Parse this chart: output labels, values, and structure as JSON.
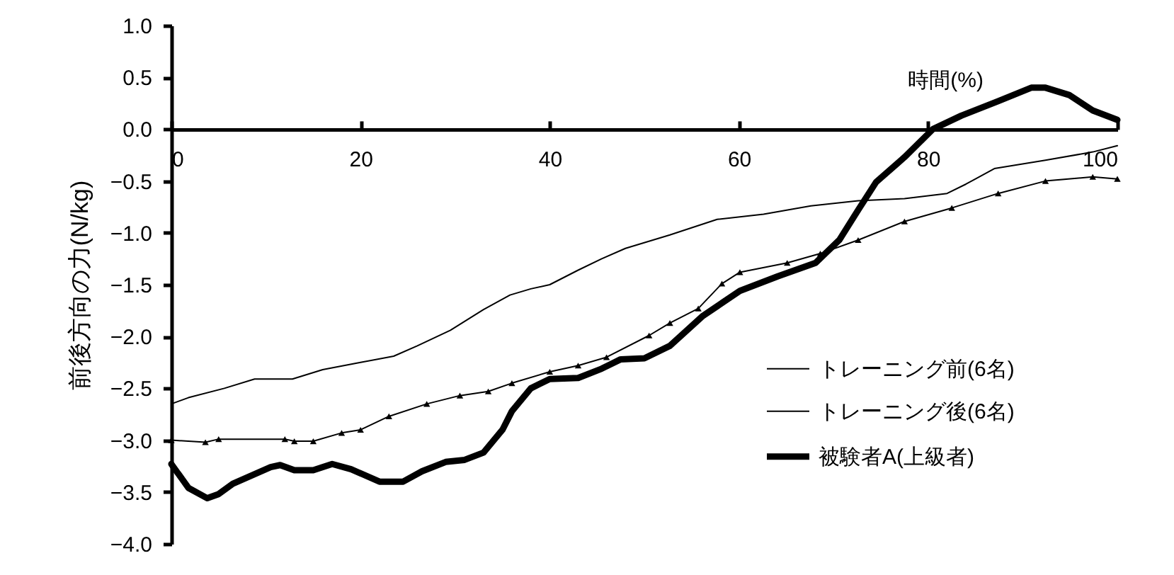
{
  "chart_data": {
    "type": "line",
    "xlabel": "時間(%)",
    "ylabel": "前後方向の力(N/kg)",
    "xlim": [
      0,
      100
    ],
    "xticks": [
      0,
      20,
      40,
      60,
      80,
      100
    ],
    "ylim": [
      -4,
      1
    ],
    "yticks": [
      {
        "value": -4,
        "label": "−4.0"
      },
      {
        "value": -3.5,
        "label": "−3.5"
      },
      {
        "value": -3,
        "label": "−3.0"
      },
      {
        "value": -2.5,
        "label": "−2.5"
      },
      {
        "value": -2,
        "label": "−2.0"
      },
      {
        "value": -1.5,
        "label": "−1.5"
      },
      {
        "value": -1,
        "label": "−1.0"
      },
      {
        "value": -0.5,
        "label": "−0.5"
      },
      {
        "value": 0,
        "label": "0.0"
      },
      {
        "value": 0.5,
        "label": "0.5"
      },
      {
        "value": 1,
        "label": "1.0"
      }
    ],
    "legend": "bottom right",
    "grid": false,
    "series": [
      {
        "name": "トレーニング前(6名)",
        "color": "#000000",
        "x": [
          0,
          1.8,
          5.6,
          8.8,
          12.8,
          16,
          20,
          23.5,
          26,
          29.5,
          33,
          35.8,
          38,
          40,
          43,
          45.5,
          48,
          52.7,
          57.7,
          62.6,
          67.6,
          72.6,
          77.5,
          82,
          84,
          87,
          92.4,
          97.4,
          100
        ],
        "values": [
          -2.65,
          -2.59,
          -2.5,
          -2.41,
          -2.41,
          -2.32,
          -2.25,
          -2.19,
          -2.09,
          -1.94,
          -1.74,
          -1.6,
          -1.54,
          -1.5,
          -1.36,
          -1.25,
          -1.15,
          -1.02,
          -0.87,
          -0.82,
          -0.74,
          -0.69,
          -0.67,
          -0.62,
          -0.53,
          -0.38,
          -0.3,
          -0.22,
          -0.16
        ]
      },
      {
        "name": "トレーニング後(6名)",
        "color": "#000000",
        "marker": "triangle",
        "x": [
          0,
          3.6,
          5,
          12,
          13,
          15,
          18,
          20,
          23,
          27,
          30.5,
          33.5,
          36,
          40,
          43,
          46,
          50.5,
          52.7,
          55.7,
          58.2,
          60.1,
          65.1,
          68.6,
          72.6,
          77.5,
          82.5,
          87.4,
          92.4,
          97.4,
          100
        ],
        "values": [
          -3.0,
          -3.02,
          -2.99,
          -2.99,
          -3.01,
          -3.01,
          -2.93,
          -2.9,
          -2.77,
          -2.65,
          -2.57,
          -2.53,
          -2.45,
          -2.34,
          -2.28,
          -2.2,
          -1.99,
          -1.87,
          -1.73,
          -1.49,
          -1.38,
          -1.29,
          -1.2,
          -1.07,
          -0.89,
          -0.76,
          -0.62,
          -0.5,
          -0.46,
          -0.48
        ]
      },
      {
        "name": "被験者A(上級者)",
        "color": "#000000",
        "x": [
          0,
          1.8,
          3.8,
          5,
          6.5,
          10.5,
          11.5,
          13,
          15,
          17,
          19,
          22,
          24.5,
          26.5,
          29,
          31,
          33,
          35,
          36,
          38,
          40,
          43,
          45.5,
          47.5,
          50,
          52.7,
          56.2,
          60.1,
          64.1,
          68.1,
          70.6,
          72.6,
          74.5,
          77.5,
          80.5,
          83.5,
          87.4,
          90.9,
          92.4,
          94.9,
          97.4,
          100
        ],
        "values": [
          -3.23,
          -3.46,
          -3.56,
          -3.52,
          -3.42,
          -3.26,
          -3.24,
          -3.29,
          -3.29,
          -3.23,
          -3.28,
          -3.4,
          -3.4,
          -3.3,
          -3.21,
          -3.19,
          -3.12,
          -2.9,
          -2.72,
          -2.5,
          -2.41,
          -2.4,
          -2.31,
          -2.22,
          -2.21,
          -2.09,
          -1.8,
          -1.56,
          -1.42,
          -1.29,
          -1.07,
          -0.78,
          -0.51,
          -0.27,
          0,
          0.13,
          0.27,
          0.4,
          0.4,
          0.33,
          0.18,
          0.09
        ]
      }
    ]
  }
}
